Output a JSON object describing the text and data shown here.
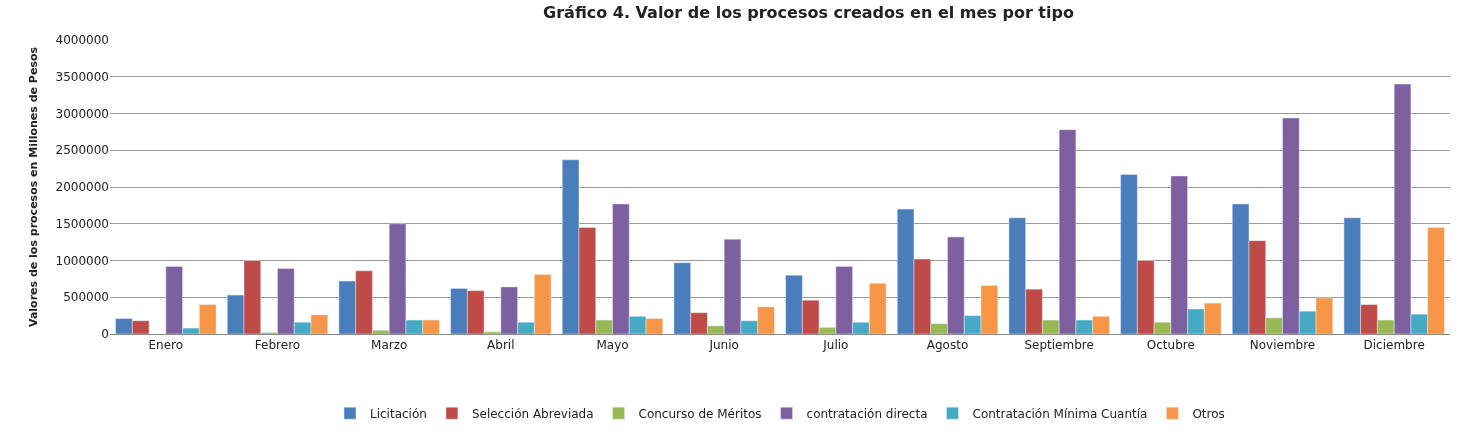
{
  "chart_data": {
    "type": "bar",
    "title": "Gráfico 4. Valor de los procesos creados en el mes por tipo",
    "ylabel": "Valores de los procesos en Millones de Pesos",
    "categories": [
      "Enero",
      "Febrero",
      "Marzo",
      "Abril",
      "Mayo",
      "Junio",
      "Julio",
      "Agosto",
      "Septiembre",
      "Octubre",
      "Noviembre",
      "Diciembre"
    ],
    "series": [
      {
        "name": "Licitación",
        "color": "#4a7ebb",
        "values": [
          210000,
          530000,
          720000,
          620000,
          2370000,
          970000,
          800000,
          1700000,
          1580000,
          2170000,
          1770000,
          1580000
        ]
      },
      {
        "name": "Selección Abreviada",
        "color": "#be4b48",
        "values": [
          180000,
          1000000,
          860000,
          590000,
          1450000,
          290000,
          460000,
          1020000,
          610000,
          1000000,
          1270000,
          400000
        ]
      },
      {
        "name": "Concurso de Méritos",
        "color": "#98b954",
        "values": [
          null,
          20000,
          50000,
          30000,
          190000,
          110000,
          90000,
          140000,
          190000,
          160000,
          220000,
          190000
        ]
      },
      {
        "name": "contratación directa",
        "color": "#7d60a0",
        "values": [
          920000,
          890000,
          1500000,
          640000,
          1770000,
          1290000,
          920000,
          1320000,
          2780000,
          2150000,
          2940000,
          3400000
        ]
      },
      {
        "name": "Contratación Mínima Cuantía",
        "color": "#46aac5",
        "values": [
          80000,
          160000,
          190000,
          160000,
          240000,
          180000,
          160000,
          250000,
          190000,
          340000,
          310000,
          270000
        ]
      },
      {
        "name": "Otros",
        "color": "#f79646",
        "values": [
          400000,
          260000,
          190000,
          810000,
          210000,
          370000,
          690000,
          660000,
          240000,
          420000,
          490000,
          1450000
        ]
      }
    ],
    "ylim": [
      0,
      4000000
    ],
    "yticks": [
      0,
      500000,
      1000000,
      1500000,
      2000000,
      2500000,
      3000000,
      3500000,
      4000000
    ],
    "grid": "y",
    "legend": "bottom"
  }
}
